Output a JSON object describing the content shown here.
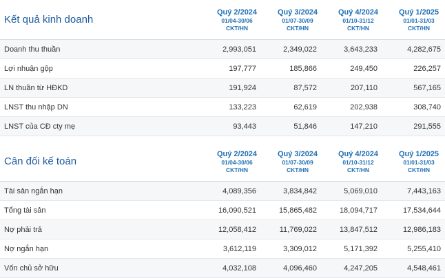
{
  "periods": [
    {
      "name": "Quý 2/2024",
      "range": "01/04-30/06",
      "unit": "CKT/HN"
    },
    {
      "name": "Quý 3/2024",
      "range": "01/07-30/09",
      "unit": "CKT/HN"
    },
    {
      "name": "Quý 4/2024",
      "range": "01/10-31/12",
      "unit": "CKT/HN"
    },
    {
      "name": "Quý 1/2025",
      "range": "01/01-31/03",
      "unit": "CKT/HN"
    }
  ],
  "income": {
    "title": "Kết quả kinh doanh",
    "rows": [
      {
        "label": "Doanh thu thuần",
        "values": [
          "2,993,051",
          "2,349,022",
          "3,643,233",
          "4,282,675"
        ]
      },
      {
        "label": "Lợi nhuận gộp",
        "values": [
          "197,777",
          "185,866",
          "249,450",
          "226,257"
        ]
      },
      {
        "label": "LN thuần từ HĐKD",
        "values": [
          "191,924",
          "87,572",
          "207,110",
          "567,165"
        ]
      },
      {
        "label": "LNST thu nhập DN",
        "values": [
          "133,223",
          "62,619",
          "202,938",
          "308,740"
        ]
      },
      {
        "label": "LNST của CĐ cty mẹ",
        "values": [
          "93,443",
          "51,846",
          "147,210",
          "291,555"
        ]
      }
    ]
  },
  "balance": {
    "title": "Cân đối kế toán",
    "rows": [
      {
        "label": "Tài sản ngắn hạn",
        "values": [
          "4,089,356",
          "3,834,842",
          "5,069,010",
          "7,443,163"
        ]
      },
      {
        "label": "Tổng tài sản",
        "values": [
          "16,090,521",
          "15,865,482",
          "18,094,717",
          "17,534,644"
        ]
      },
      {
        "label": "Nợ phải trả",
        "values": [
          "12,058,412",
          "11,769,022",
          "13,847,512",
          "12,986,183"
        ]
      },
      {
        "label": "Nợ ngắn hạn",
        "values": [
          "3,612,119",
          "3,309,012",
          "5,171,392",
          "5,255,410"
        ]
      },
      {
        "label": "Vốn chủ sở hữu",
        "values": [
          "4,032,108",
          "4,096,460",
          "4,247,205",
          "4,548,461"
        ]
      }
    ]
  }
}
